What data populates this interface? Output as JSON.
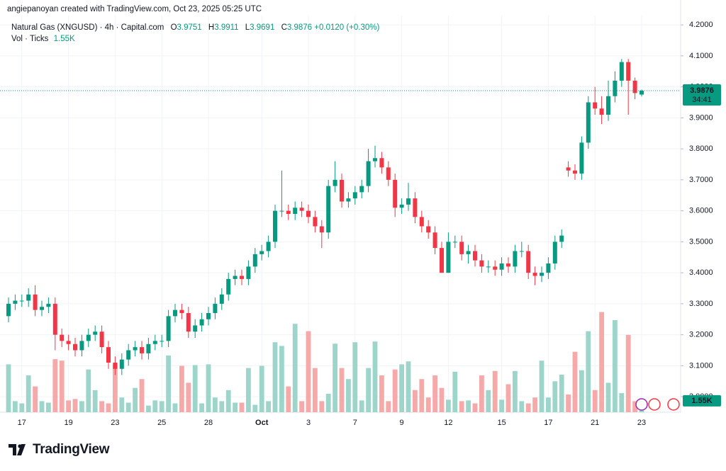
{
  "chart_data": {
    "type": "candlestick",
    "attribution": "angiepanoyan created with TradingView.com, Oct 23, 2025 05:25 UTC",
    "title": "Natural Gas (XNGUSD) · 4h · Capital.com",
    "legend_keys": [
      "O",
      "H",
      "L",
      "C"
    ],
    "change_label": "+0.0120 (+0.30%)",
    "countdown": "34:41",
    "brand": "TradingView",
    "up_color": "#089981",
    "down_color": "#f23645",
    "grid": true,
    "ylim": [
      2.95,
      4.23
    ],
    "yticks": [
      {
        "value": 3.0,
        "label": "3.0000"
      },
      {
        "value": 3.1,
        "label": "3.1000"
      },
      {
        "value": 3.2,
        "label": "3.2000"
      },
      {
        "value": 3.3,
        "label": "3.3000"
      },
      {
        "value": 3.4,
        "label": "3.4000"
      },
      {
        "value": 3.5,
        "label": "3.5000"
      },
      {
        "value": 3.6,
        "label": "3.6000"
      },
      {
        "value": 3.7,
        "label": "3.7000"
      },
      {
        "value": 3.8,
        "label": "3.8000"
      },
      {
        "value": 3.9,
        "label": "3.9000"
      },
      {
        "value": 4.0,
        "label": "4.0000"
      },
      {
        "value": 4.1,
        "label": "4.1000"
      },
      {
        "value": 4.2,
        "label": "4.2000"
      }
    ],
    "categories": [
      null,
      null,
      "17",
      null,
      null,
      null,
      null,
      null,
      null,
      "19",
      null,
      null,
      null,
      null,
      null,
      null,
      "23",
      null,
      null,
      null,
      null,
      null,
      null,
      "25",
      null,
      null,
      null,
      null,
      null,
      null,
      "28",
      null,
      null,
      null,
      null,
      null,
      null,
      null,
      "Oct",
      null,
      null,
      null,
      null,
      null,
      null,
      "3",
      null,
      null,
      null,
      null,
      null,
      null,
      "7",
      null,
      null,
      null,
      null,
      null,
      null,
      "9",
      null,
      null,
      null,
      null,
      null,
      null,
      "12",
      null,
      null,
      null,
      null,
      null,
      null,
      null,
      "15",
      null,
      null,
      null,
      null,
      null,
      null,
      "17",
      null,
      null,
      null,
      null,
      null,
      null,
      "21",
      null,
      null,
      null,
      null,
      null,
      null,
      "23"
    ],
    "open": [
      3.26,
      3.3,
      3.31,
      3.31,
      3.33,
      3.28,
      3.29,
      3.3,
      3.2,
      3.18,
      3.17,
      3.15,
      3.18,
      3.2,
      3.21,
      3.16,
      3.11,
      3.09,
      3.12,
      3.15,
      3.16,
      3.14,
      3.17,
      3.18,
      3.18,
      3.26,
      3.28,
      3.27,
      3.21,
      3.23,
      3.25,
      3.27,
      3.3,
      3.33,
      3.38,
      3.39,
      3.38,
      3.42,
      3.46,
      3.47,
      3.5,
      3.6,
      3.6,
      3.59,
      3.61,
      3.6,
      3.58,
      3.55,
      3.53,
      3.68,
      3.7,
      3.63,
      3.64,
      3.66,
      3.68,
      3.76,
      3.77,
      3.74,
      3.7,
      3.61,
      3.62,
      3.64,
      3.58,
      3.55,
      3.53,
      3.48,
      3.4,
      3.5,
      3.5,
      3.46,
      3.47,
      3.44,
      3.42,
      3.42,
      3.41,
      3.43,
      3.42,
      3.47,
      3.47,
      3.4,
      3.39,
      3.4,
      3.43,
      3.5,
      3.74,
      3.73,
      3.72,
      3.82,
      3.95,
      3.93,
      3.91,
      3.97,
      4.02,
      4.08,
      4.02,
      3.9751
    ],
    "high": [
      3.32,
      3.33,
      3.33,
      3.35,
      3.36,
      3.31,
      3.32,
      3.32,
      3.22,
      3.2,
      3.19,
      3.2,
      3.22,
      3.23,
      3.23,
      3.18,
      3.13,
      3.14,
      3.17,
      3.18,
      3.18,
      3.19,
      3.2,
      3.2,
      3.28,
      3.3,
      3.3,
      3.29,
      3.25,
      3.27,
      3.29,
      3.32,
      3.35,
      3.4,
      3.41,
      3.41,
      3.44,
      3.48,
      3.49,
      3.52,
      3.62,
      3.73,
      3.62,
      3.63,
      3.63,
      3.62,
      3.6,
      3.57,
      3.7,
      3.76,
      3.72,
      3.66,
      3.68,
      3.7,
      3.8,
      3.81,
      3.79,
      3.76,
      3.72,
      3.64,
      3.69,
      3.66,
      3.6,
      3.57,
      3.55,
      3.5,
      3.53,
      3.52,
      3.52,
      3.49,
      3.49,
      3.46,
      3.44,
      3.44,
      3.45,
      3.45,
      3.49,
      3.5,
      3.49,
      3.42,
      3.42,
      3.45,
      3.52,
      3.54,
      3.76,
      3.75,
      3.84,
      3.97,
      4.0,
      3.97,
      4.02,
      4.05,
      4.09,
      4.09,
      4.03,
      3.9911
    ],
    "low": [
      3.24,
      3.28,
      3.29,
      3.29,
      3.26,
      3.26,
      3.27,
      3.15,
      3.16,
      3.15,
      3.13,
      3.13,
      3.16,
      3.18,
      3.14,
      3.09,
      3.07,
      3.07,
      3.1,
      3.13,
      3.12,
      3.12,
      3.15,
      3.16,
      3.16,
      3.24,
      3.25,
      3.19,
      3.19,
      3.21,
      3.23,
      3.25,
      3.28,
      3.31,
      3.36,
      3.36,
      3.36,
      3.4,
      3.44,
      3.45,
      3.48,
      3.58,
      3.57,
      3.57,
      3.58,
      3.56,
      3.53,
      3.48,
      3.51,
      3.66,
      3.61,
      3.61,
      3.62,
      3.64,
      3.66,
      3.74,
      3.72,
      3.68,
      3.58,
      3.59,
      3.6,
      3.56,
      3.53,
      3.51,
      3.46,
      3.4,
      3.4,
      3.48,
      3.44,
      3.43,
      3.42,
      3.4,
      3.4,
      3.39,
      3.39,
      3.4,
      3.4,
      3.45,
      3.38,
      3.36,
      3.37,
      3.38,
      3.41,
      3.48,
      3.71,
      3.7,
      3.7,
      3.8,
      3.91,
      3.88,
      3.89,
      3.95,
      4.0,
      3.91,
      3.96,
      3.9691
    ],
    "close": [
      3.3,
      3.31,
      3.31,
      3.33,
      3.28,
      3.29,
      3.3,
      3.2,
      3.18,
      3.17,
      3.15,
      3.18,
      3.2,
      3.21,
      3.16,
      3.11,
      3.09,
      3.12,
      3.15,
      3.16,
      3.14,
      3.17,
      3.18,
      3.18,
      3.26,
      3.28,
      3.27,
      3.21,
      3.23,
      3.25,
      3.27,
      3.3,
      3.33,
      3.38,
      3.39,
      3.38,
      3.42,
      3.46,
      3.47,
      3.5,
      3.6,
      3.6,
      3.59,
      3.61,
      3.6,
      3.58,
      3.55,
      3.53,
      3.68,
      3.7,
      3.63,
      3.64,
      3.66,
      3.68,
      3.76,
      3.77,
      3.74,
      3.7,
      3.61,
      3.62,
      3.64,
      3.58,
      3.55,
      3.53,
      3.48,
      3.4,
      3.5,
      3.5,
      3.46,
      3.47,
      3.44,
      3.42,
      3.42,
      3.41,
      3.43,
      3.42,
      3.47,
      3.47,
      3.4,
      3.39,
      3.4,
      3.43,
      3.5,
      3.52,
      3.73,
      3.72,
      3.82,
      3.95,
      3.93,
      3.91,
      3.97,
      4.02,
      4.08,
      4.02,
      3.98,
      3.9876
    ],
    "volume": {
      "name": "Vol · Ticks",
      "ylim": [
        0,
        25000
      ],
      "up_color": "#9dd5cb",
      "down_color": "#f5a9a8",
      "values": [
        6500,
        1500,
        1200,
        5000,
        3500,
        1500,
        1300,
        7200,
        7000,
        1600,
        1800,
        1500,
        5800,
        3000,
        1500,
        1200,
        6500,
        2000,
        1300,
        3300,
        4500,
        900,
        1600,
        1500,
        7700,
        1200,
        6300,
        4000,
        6400,
        1200,
        6500,
        2000,
        1500,
        3000,
        1300,
        1300,
        6000,
        1000,
        6300,
        1500,
        9500,
        9000,
        3500,
        12000,
        1500,
        11000,
        6000,
        1500,
        2500,
        9300,
        6000,
        4500,
        9500,
        1600,
        6000,
        9600,
        5000,
        1500,
        5800,
        6500,
        6900,
        3000,
        4500,
        2000,
        5000,
        3300,
        1700,
        5500,
        1500,
        1600,
        1200,
        5000,
        3000,
        5600,
        1700,
        3800,
        5600,
        1500,
        1200,
        2000,
        7000,
        2000,
        4200,
        5100,
        2400,
        8200,
        5700,
        11000,
        3000,
        13600,
        4000,
        12500,
        2600,
        10500,
        1500,
        1550
      ],
      "value_labels": [
        null,
        null,
        null,
        null,
        null,
        null,
        null,
        null,
        null,
        null,
        null,
        null,
        null,
        null,
        null,
        null,
        null,
        null,
        null,
        null,
        null,
        null,
        null,
        null,
        null,
        null,
        null,
        null,
        null,
        null,
        null,
        null,
        null,
        null,
        null,
        null,
        null,
        null,
        null,
        null,
        null,
        null,
        null,
        null,
        null,
        null,
        null,
        null,
        null,
        null,
        null,
        null,
        null,
        null,
        null,
        null,
        null,
        null,
        null,
        null,
        null,
        null,
        null,
        null,
        null,
        null,
        null,
        null,
        null,
        null,
        null,
        null,
        null,
        null,
        null,
        null,
        null,
        null,
        null,
        null,
        null,
        null,
        null,
        null,
        null,
        null,
        null,
        null,
        null,
        null,
        null,
        null,
        null,
        null,
        null,
        "1.55K"
      ]
    }
  }
}
